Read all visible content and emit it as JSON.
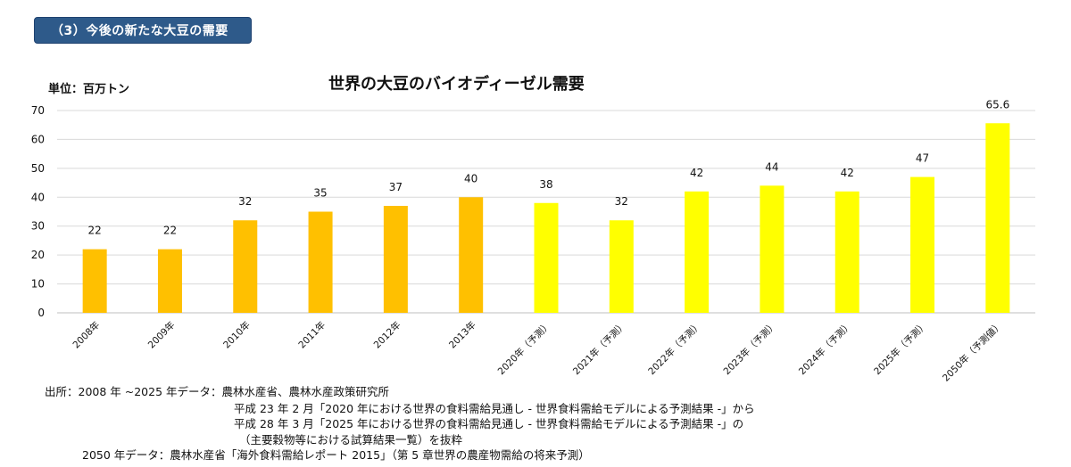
{
  "section": {
    "label": "（3）今後の新たな大豆の需要"
  },
  "chart_data": {
    "type": "bar",
    "title": "世界の大豆のバイオディーゼル需要",
    "unit_label": "単位：百万トン",
    "ylim": [
      0,
      70
    ],
    "yticks": [
      0,
      10,
      20,
      30,
      40,
      50,
      60,
      70
    ],
    "grid": true,
    "legend": "none",
    "categories": [
      "2008年",
      "2009年",
      "2010年",
      "2011年",
      "2012年",
      "2013年",
      "2020年（予測）",
      "2021年（予測）",
      "2022年（予測）",
      "2023年（予測）",
      "2024年（予測）",
      "2025年（予測）",
      "2050年（予測値）"
    ],
    "values": [
      22,
      22,
      32,
      35,
      37,
      40,
      38,
      32,
      42,
      44,
      42,
      47,
      65.6
    ],
    "data_labels": [
      "22",
      "22",
      "32",
      "35",
      "37",
      "40",
      "38",
      "32",
      "42",
      "44",
      "42",
      "47",
      "65.6"
    ],
    "bar_colors": [
      "#ffc000",
      "#ffc000",
      "#ffc000",
      "#ffc000",
      "#ffc000",
      "#ffc000",
      "#ffff00",
      "#ffff00",
      "#ffff00",
      "#ffff00",
      "#ffff00",
      "#ffff00",
      "#ffff00"
    ]
  },
  "source": {
    "line1": "出所：2008 年 ~2025 年データ：農林水産省、農林水産政策研究所",
    "line2": "平成 23 年 2 月「2020 年における世界の食料需給見通し - 世界食料需給モデルによる予測結果 -」から",
    "line3": "平成 28 年 3 月「2025 年における世界の食料需給見通し - 世界食料需給モデルによる予測結果 -」の",
    "line4": "（主要穀物等における試算結果一覧）を抜粋",
    "line5": "2050 年データ：農林水産省「海外食料需給レポート 2015」（第 5 章世界の農産物需給の将来予測）"
  }
}
